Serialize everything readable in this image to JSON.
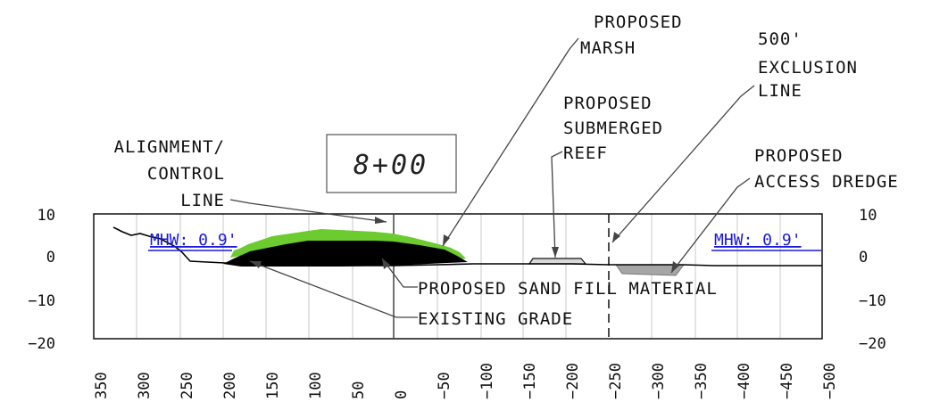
{
  "station_label": "8+00",
  "mhw": {
    "left_label": "MHW: 0.9'",
    "right_label": "MHW: 0.9'"
  },
  "y_axis": {
    "ticks": [
      "10",
      "0",
      "−10",
      "−20"
    ],
    "values": [
      10,
      0,
      -10,
      -20
    ]
  },
  "x_axis": {
    "ticks": [
      "350",
      "300",
      "250",
      "200",
      "150",
      "100",
      "50",
      "0",
      "−50",
      "−100",
      "−150",
      "−200",
      "−250",
      "−300",
      "−350",
      "−400",
      "−450",
      "−500"
    ],
    "values": [
      350,
      300,
      250,
      200,
      150,
      100,
      50,
      0,
      -50,
      -100,
      -150,
      -200,
      -250,
      -300,
      -350,
      -400,
      -450,
      -500
    ]
  },
  "callouts": {
    "alignment": {
      "l1": "ALIGNMENT/",
      "l2": "CONTROL",
      "l3": "LINE"
    },
    "marsh": {
      "l1": "PROPOSED",
      "l2": "MARSH"
    },
    "exclusion": {
      "l1": "500'",
      "l2": "EXCLUSION",
      "l3": "LINE"
    },
    "reef": {
      "l1": "PROPOSED",
      "l2": "SUBMERGED",
      "l3": "REEF"
    },
    "dredge": {
      "l1": "PROPOSED",
      "l2": "ACCESS DREDGE"
    },
    "sand_fill": "PROPOSED SAND FILL MATERIAL",
    "existing_grade": "EXISTING GRADE"
  },
  "colors": {
    "marsh": "#6ccb2e",
    "sand_fill": "#000000",
    "dredge": "#a6a6a6",
    "mhw": "#1a1ad8",
    "grid": "#c8c8c8"
  }
}
